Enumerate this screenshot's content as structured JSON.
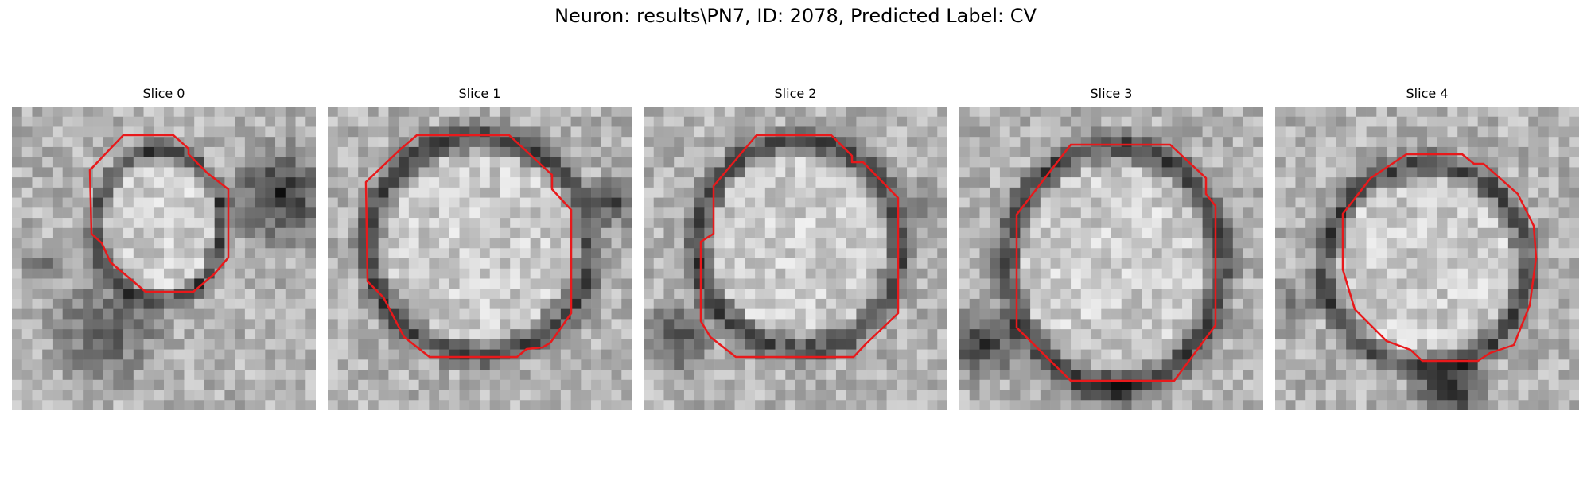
{
  "figure": {
    "suptitle": "Neuron: results\\PN7, ID: 2078, Predicted Label: CV",
    "contour_color": "#e8191b"
  },
  "slices": [
    {
      "title": "Slice 0"
    },
    {
      "title": "Slice 1"
    },
    {
      "title": "Slice 2"
    },
    {
      "title": "Slice 3"
    },
    {
      "title": "Slice 4"
    }
  ]
}
